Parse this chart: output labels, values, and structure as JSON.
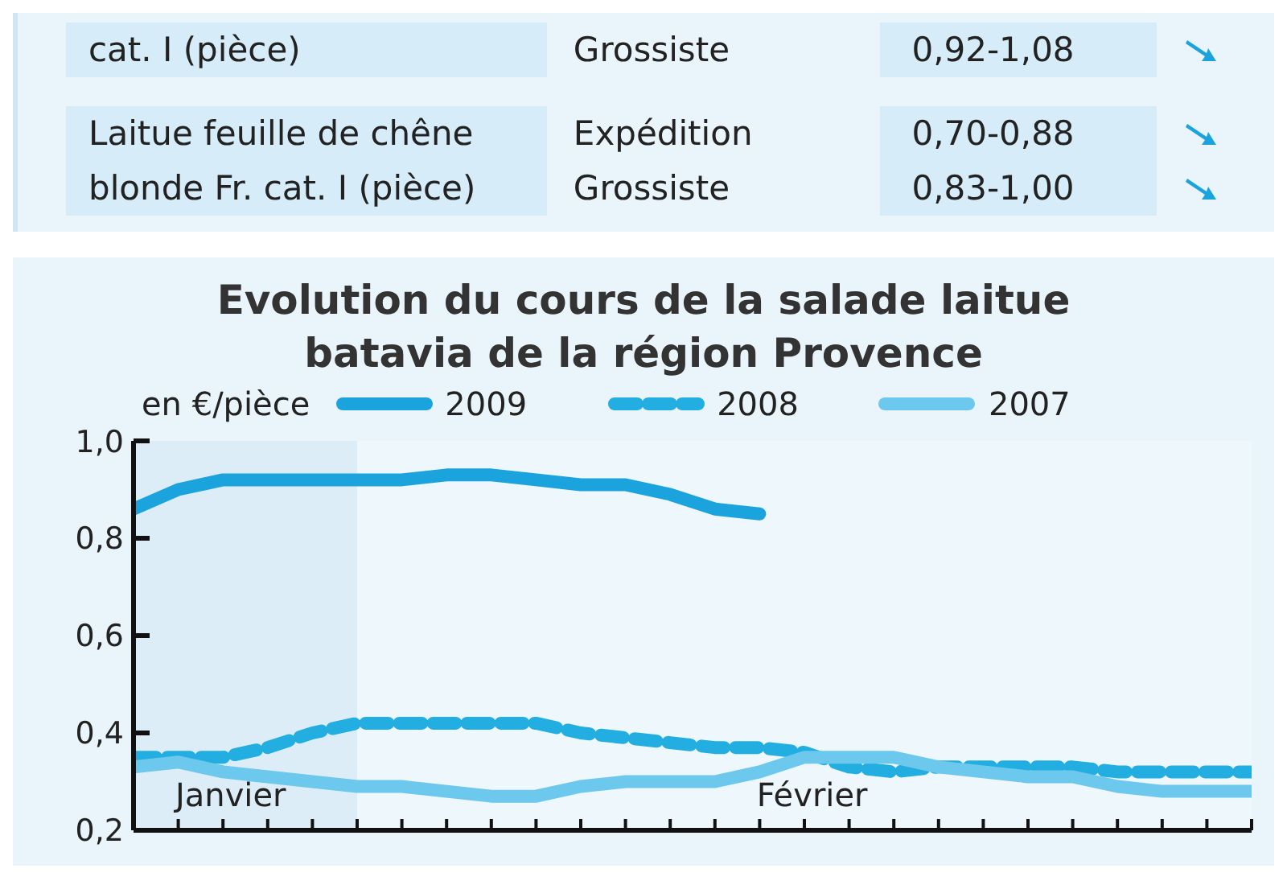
{
  "chart_data": [
    {
      "type": "other",
      "annotations": [
        "cat. I (pièce)",
        "Grossiste",
        "0,92-1,08",
        "Laitue feuille de chêne",
        "Expédition",
        "0,70-0,88",
        "blonde Fr. cat. I (pièce)",
        "Grossiste",
        "0,83-1,00"
      ]
    },
    {
      "type": "line",
      "title": "Evolution du cours de la salade laitue batavia de la région Provence",
      "ylabel": "en €/pièce",
      "legend": "top",
      "categories": [
        null,
        null,
        null,
        null,
        null,
        null,
        null,
        null,
        null,
        null,
        null,
        null,
        null,
        null,
        null,
        null,
        null,
        null,
        null,
        null,
        null,
        null,
        null,
        null,
        null,
        null
      ],
      "ylim": [
        0.2,
        1.0
      ],
      "yticks": [
        {
          "value": 0.2,
          "label": "0,2"
        },
        {
          "value": 0.4,
          "label": "0,4"
        },
        {
          "value": 0.6,
          "label": "0,6"
        },
        {
          "value": 0.8,
          "label": "0,8"
        },
        {
          "value": 1.0,
          "label": "1,0"
        }
      ],
      "annotations": [
        "Janvier",
        "Février"
      ],
      "series": [
        {
          "name": "2009",
          "color": "#1aa3dc",
          "line_style": "solid",
          "values": [
            0.86,
            0.9,
            0.92,
            0.92,
            0.92,
            0.92,
            0.92,
            0.93,
            0.93,
            0.92,
            0.91,
            0.91,
            0.89,
            0.86,
            0.85,
            null,
            null,
            null,
            null,
            null,
            null,
            null,
            null,
            null,
            null,
            null
          ]
        },
        {
          "name": "2008",
          "color": "#22aee0",
          "line_style": "dashed",
          "values": [
            0.35,
            0.35,
            0.35,
            0.37,
            0.4,
            0.42,
            0.42,
            0.42,
            0.42,
            0.42,
            0.4,
            0.39,
            0.38,
            0.37,
            0.37,
            0.36,
            0.33,
            0.32,
            0.33,
            0.33,
            0.33,
            0.33,
            0.32,
            0.32,
            0.32,
            0.32
          ]
        },
        {
          "name": "2007",
          "color": "#6cc8ec",
          "line_style": "solid",
          "values": [
            0.33,
            0.34,
            0.32,
            0.31,
            0.3,
            0.29,
            0.29,
            0.28,
            0.27,
            0.27,
            0.29,
            0.3,
            0.3,
            0.3,
            0.32,
            0.35,
            0.35,
            0.35,
            0.33,
            0.32,
            0.31,
            0.31,
            0.29,
            0.28,
            0.28,
            0.28
          ]
        }
      ]
    }
  ]
}
